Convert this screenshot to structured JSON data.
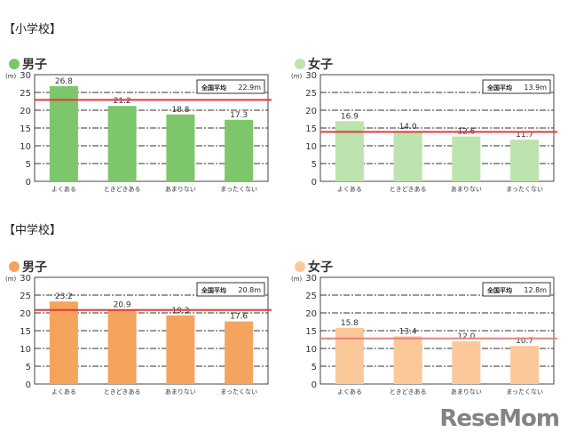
{
  "sections": {
    "elementary": "【小学校】",
    "junior_high": "【中学校】"
  },
  "watermark": "ReseMom",
  "chart_data": [
    {
      "type": "bar",
      "section": "【小学校】",
      "title": "男子",
      "unit": "(m)",
      "categories": [
        "よくある",
        "ときどきある",
        "あまりない",
        "まったくない"
      ],
      "values": [
        26.8,
        21.2,
        18.8,
        17.3
      ],
      "value_labels": [
        "26.8",
        "21.2",
        "18.8",
        "17.3"
      ],
      "ylim": [
        0,
        30
      ],
      "yticks": [
        "0",
        "5",
        "10",
        "15",
        "20",
        "25",
        "30"
      ],
      "grid": true,
      "reference_line": {
        "label": "全国平均",
        "value": 22.9,
        "value_label": "22.9m",
        "color": "#e03a3a"
      },
      "color": "#7dc66b"
    },
    {
      "type": "bar",
      "section": "【小学校】",
      "title": "女子",
      "unit": "(m)",
      "categories": [
        "よくある",
        "ときどきある",
        "あまりない",
        "まったくない"
      ],
      "values": [
        16.9,
        14.0,
        12.6,
        11.7
      ],
      "value_labels": [
        "16.9",
        "14.0",
        "12.6",
        "11.7"
      ],
      "ylim": [
        0,
        30
      ],
      "yticks": [
        "0",
        "5",
        "10",
        "15",
        "20",
        "25",
        "30"
      ],
      "grid": true,
      "reference_line": {
        "label": "全国平均",
        "value": 13.9,
        "value_label": "13.9m",
        "color": "#e03a3a"
      },
      "color": "#bde3ae"
    },
    {
      "type": "bar",
      "section": "【中学校】",
      "title": "男子",
      "unit": "(m)",
      "categories": [
        "よくある",
        "ときどきある",
        "あまりない",
        "まったくない"
      ],
      "values": [
        23.2,
        20.9,
        19.3,
        17.6
      ],
      "value_labels": [
        "23.2",
        "20.9",
        "19.3",
        "17.6"
      ],
      "ylim": [
        0,
        30
      ],
      "yticks": [
        "0",
        "5",
        "10",
        "15",
        "20",
        "25",
        "30"
      ],
      "grid": true,
      "reference_line": {
        "label": "全国平均",
        "value": 20.8,
        "value_label": "20.8m",
        "color": "#e03a3a"
      },
      "color": "#f5a45e"
    },
    {
      "type": "bar",
      "section": "【中学校】",
      "title": "女子",
      "unit": "(m)",
      "categories": [
        "よくある",
        "ときどきある",
        "あまりない",
        "まったくない"
      ],
      "values": [
        15.8,
        13.4,
        12.0,
        10.7
      ],
      "value_labels": [
        "15.8",
        "13.4",
        "12.0",
        "10.7"
      ],
      "ylim": [
        0,
        30
      ],
      "yticks": [
        "0",
        "5",
        "10",
        "15",
        "20",
        "25",
        "30"
      ],
      "grid": true,
      "reference_line": {
        "label": "全国平均",
        "value": 12.8,
        "value_label": "12.8m",
        "color": "#e88080"
      },
      "color": "#fbc899"
    }
  ]
}
